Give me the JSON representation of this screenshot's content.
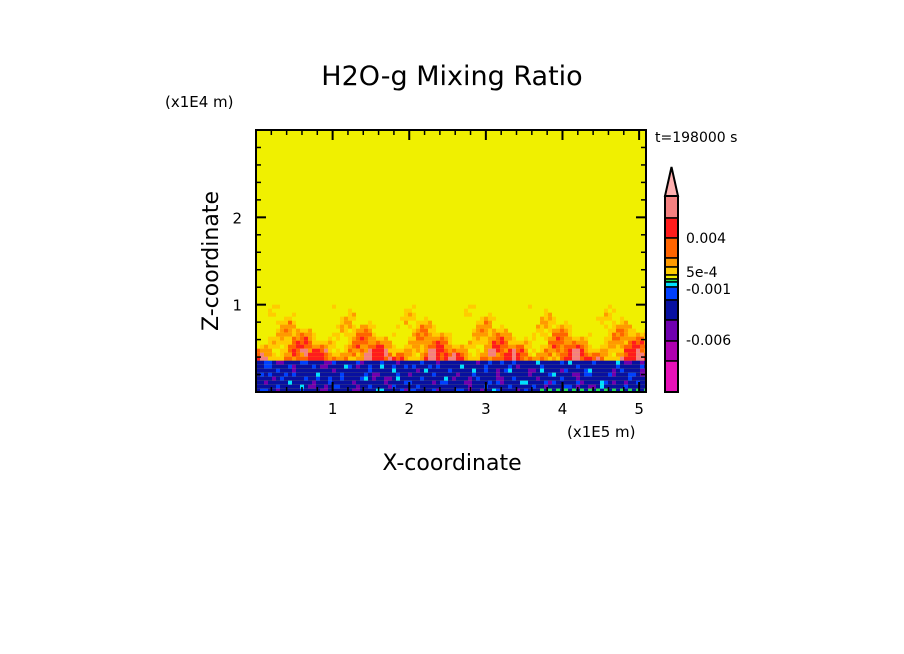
{
  "chart_data": {
    "type": "heatmap",
    "title": "H2O-g Mixing Ratio",
    "xlabel": "X-coordinate",
    "ylabel": "Z-coordinate",
    "x_unit": "(x1E5 m)",
    "y_unit": "(x1E4 m)",
    "time_label": "t=198000 s",
    "xlim": [
      0,
      5.09
    ],
    "ylim": [
      0,
      3.0
    ],
    "x_ticks": [
      "1",
      "2",
      "3",
      "4",
      "5"
    ],
    "x_tick_values": [
      1,
      2,
      3,
      4,
      5
    ],
    "y_ticks": [
      "1",
      "2"
    ],
    "y_tick_values": [
      1,
      2
    ],
    "colorbar": {
      "labels": [
        "0.004",
        "5e-4",
        "-0.001",
        "-0.006"
      ],
      "label_levels": [
        0.004,
        0.0005,
        -0.001,
        -0.006
      ],
      "colors_top_to_bottom": [
        "#f48080",
        "#ff1c1c",
        "#ff6400",
        "#ff9a00",
        "#ffcc00",
        "#f0f000",
        "#22e050",
        "#00e0ff",
        "#0040ff",
        "#0810a0",
        "#7000b0",
        "#b000b0",
        "#e810b8"
      ],
      "extend_top_color": "#ffb0b0"
    },
    "description_regions": {
      "upper_layer_z_range": [
        1.0,
        3.0
      ],
      "mixed_layer_z_range": [
        0.4,
        1.0
      ],
      "lower_layer_z_range": [
        0,
        0.4
      ]
    }
  }
}
